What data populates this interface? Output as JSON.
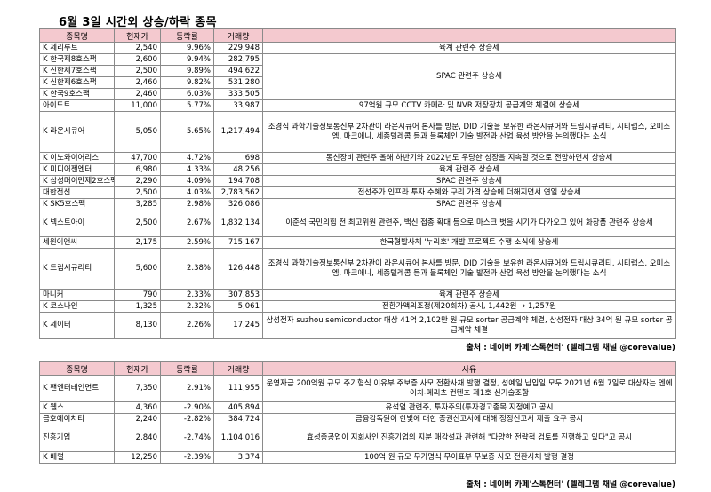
{
  "title": "6월 3일  시간외 상승/하락 종목",
  "headers": [
    "종목명",
    "현재가",
    "등락률",
    "거래량"
  ],
  "reason_header": "사유",
  "up_rows": [
    {
      "name": "K 제리루트",
      "price": "2,540",
      "rate": "9.96%",
      "volume": "229,948"
    },
    {
      "name": "K 한국제8호스팩",
      "price": "2,600",
      "rate": "9.94%",
      "volume": "282,795"
    },
    {
      "name": "K 신한제7호스팩",
      "price": "2,500",
      "rate": "9.89%",
      "volume": "494,622"
    },
    {
      "name": "K 신한제6호스팩",
      "price": "2,460",
      "rate": "9.82%",
      "volume": "531,280"
    },
    {
      "name": "K 한국9호스팩",
      "price": "2,460",
      "rate": "6.03%",
      "volume": "333,505"
    },
    {
      "name": "  아이드트",
      "price": "11,000",
      "rate": "5.77%",
      "volume": "33,987"
    },
    {
      "name": "K 라온시큐어",
      "price": "5,050",
      "rate": "5.65%",
      "volume": "1,217,494"
    },
    {
      "name": "K 이노와이어리스",
      "price": "47,700",
      "rate": "4.72%",
      "volume": "698"
    },
    {
      "name": "K 미디어젠엔터",
      "price": "6,980",
      "rate": "4.33%",
      "volume": "48,256"
    },
    {
      "name": "K 삼성머이만제2호스팩",
      "price": "2,290",
      "rate": "4.09%",
      "volume": "194,708"
    },
    {
      "name": "  대한전선",
      "price": "2,500",
      "rate": "4.03%",
      "volume": "2,783,562"
    },
    {
      "name": "K SK5호스팩",
      "price": "3,285",
      "rate": "2.98%",
      "volume": "326,086"
    },
    {
      "name": "K 넥스트아이",
      "price": "2,500",
      "rate": "2.67%",
      "volume": "1,832,134"
    },
    {
      "name": "  세원이앤씨",
      "price": "2,175",
      "rate": "2.59%",
      "volume": "715,167"
    },
    {
      "name": "K 드림시큐리티",
      "price": "5,600",
      "rate": "2.38%",
      "volume": "126,448"
    },
    {
      "name": "  마니커",
      "price": "790",
      "rate": "2.33%",
      "volume": "307,853"
    },
    {
      "name": "K 코스나인",
      "price": "1,325",
      "rate": "2.32%",
      "volume": "5,061"
    },
    {
      "name": "K 세이터",
      "price": "8,130",
      "rate": "2.26%",
      "volume": "17,245"
    }
  ],
  "up_reasons": [
    "육계 관련주 상승세",
    "SPAC 관련주 상승세",
    "97억원 규모 CCTV 카메라 및 NVR 저장장치 공급계약 체결에 상승세",
    "조경식 과학기술정보통신부 2차관이 라온시큐어 본사를 방문, DID 기술을 보유한 라온시큐어와 드림시큐리티, 시티랩스, 오미소엠, 마크애니, 세종텔레콤 등과 블록체인 기술 발전과 산업 육성 방안을 논의했다는 소식",
    "통신장비 관련주 올해 하반기와 2022년도 우당한 성장을 지속할 것으로 전망하면서 상승세",
    "육계 관련주 상승세",
    "SPAC 관련주 상승세",
    "전선주가 인프라 투자 수혜와 구리 가격 상승에 더해지면서 연일 상승세",
    "SPAC 관련주 상승세",
    "이준석 국민의힘 전 최고위원 관련주, 백신 접종 확대 등으로 마스크 벗을 시기가 다가오고 있어 화장품 관련주 상승세",
    "한국형발사체 '누리호' 개발 프로젝트 수행 소식에 상승세",
    "조경식 과학기술정보통신부 2차관이 라온시큐어 본사를 방문, DID 기술을 보유한 라온시큐어와 드림시큐리티, 시티랩스, 오미소엠, 마크애니, 세종텔레콤 등과 블록체인 기술 발전과 산업 육성 방안을 논의했다는 소식",
    "육계 관련주 상승세",
    "전환가액의조정(제20회차) 공시, 1,442원 → 1,257원",
    "삼성전자 suzhou semiconductor 대상 41억 2,102만 원 규모 sorter 공급계약 체결, 삼성전자 대상 34억 원 규모 sorter 공급계약 체결"
  ],
  "source_label": "출처 : 네이버 카페'스톡헌터' (텔레그램 채널 @corevalue)",
  "down_rows": [
    {
      "name": "K 팬엔터테인먼트",
      "price": "7,350",
      "rate": "2.91%",
      "volume": "111,955",
      "reason": "운영자금 200억원 규모 주기형식 이유부 주보증 사모 전환사채 발행 결정, 성예일 납입일 모두 2021년 6월 7일로 대상자는 엔에이치-메리츠 컨텐츠 제1호 신기술조합"
    },
    {
      "name": "K 웰스",
      "price": "4,360",
      "rate": "-2.90%",
      "volume": "405,894",
      "reason": "유석열 관련주, 투자주의(투자경고종목 지정예고 공시"
    },
    {
      "name": "  금호에이치티",
      "price": "2,240",
      "rate": "-2.82%",
      "volume": "384,724",
      "reason": "금융감독원이 한빛에 대한 증권신고서에 대해 정정신고서 제출 요구 공시"
    },
    {
      "name": "  진흥기업",
      "price": "2,840",
      "rate": "-2.74%",
      "volume": "1,104,016",
      "reason": "효성중공업이 지회사인 진흥기업의 지분 매각설과 관련해 \"다양한 전략적 검토를 진행하고 있다\"고 공시"
    },
    {
      "name": "K 배럴",
      "price": "12,250",
      "rate": "-2.39%",
      "volume": "3,374",
      "reason": "100억 원 규모 무기명식 무이표부 무보증 사모 전환사채 발행 결정"
    }
  ],
  "source_label2": "출처 : 네이버 카페'스톡헌터' (텔레그램 채널 @corevalue)"
}
